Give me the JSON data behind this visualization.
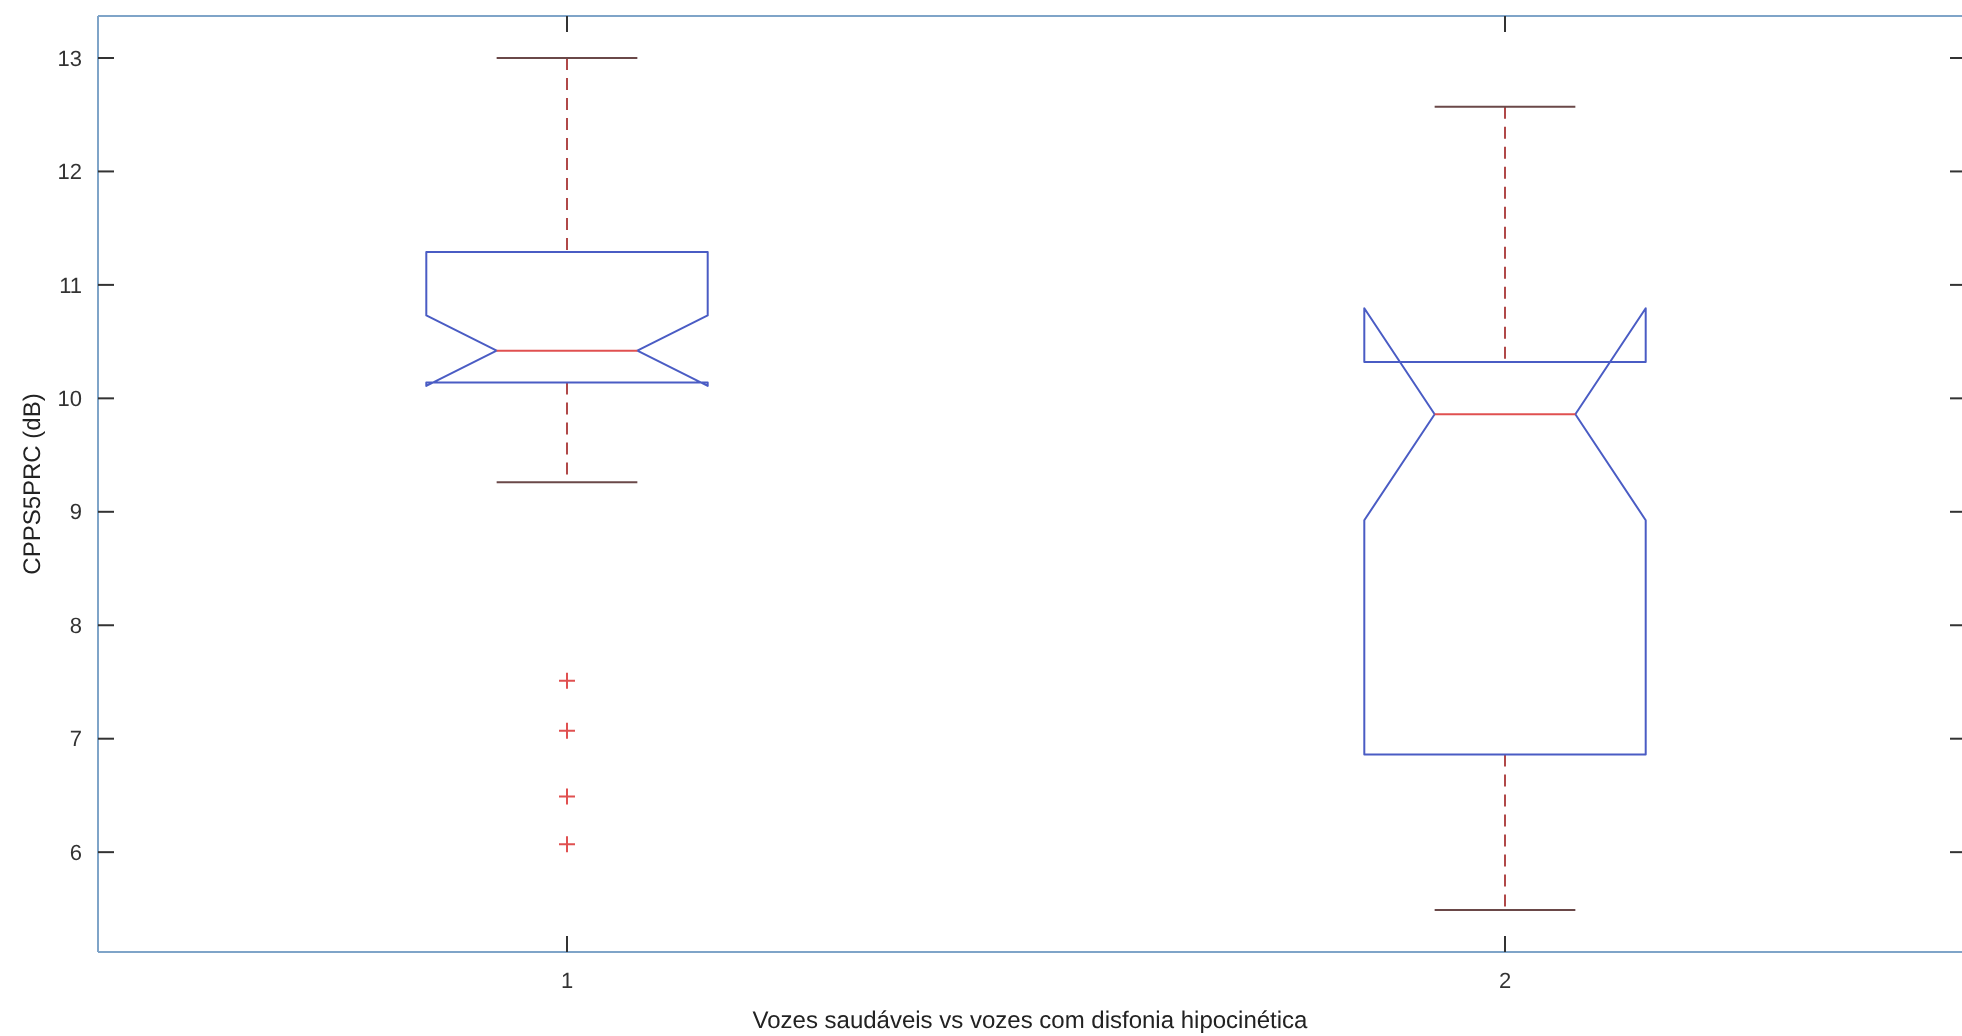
{
  "chart_data": {
    "type": "box",
    "xlabel": "Vozes saudáveis vs vozes com disfonia hipocinética",
    "ylabel": "CPPS5PRC (dB)",
    "categories": [
      "1",
      "2"
    ],
    "color": "#4a5cc4",
    "boxes": [
      {
        "low": 9.26,
        "q1": 10.14,
        "median": 10.42,
        "q3": 11.29,
        "high": 13.0,
        "outliers": [
          7.51,
          7.07,
          6.49,
          6.07
        ]
      },
      {
        "low": 5.49,
        "q1": 6.86,
        "median": 9.86,
        "q3": 10.32,
        "high": 12.57
      }
    ],
    "ylim": [
      5.12,
      13.37
    ],
    "yticks": [
      6,
      7,
      8,
      9,
      10,
      11,
      12,
      13
    ]
  }
}
